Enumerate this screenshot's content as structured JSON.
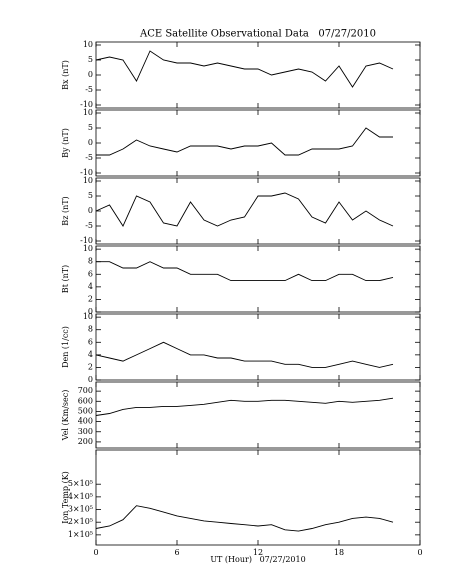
{
  "title": "ACE Satellite Observational Data   07/27/2010",
  "xlabel": "UT (Hour)   07/27/2010",
  "x": [
    0,
    1,
    2,
    3,
    4,
    5,
    6,
    7,
    8,
    9,
    10,
    11,
    12,
    13,
    14,
    15,
    16,
    17,
    18,
    19,
    20,
    21,
    22
  ],
  "xlim": [
    0,
    24
  ],
  "xticks": [
    0,
    6,
    12,
    18,
    {
      "value": 24,
      "label": "0"
    }
  ],
  "chart_data": [
    {
      "type": "line",
      "ylabel": "Bx (nT)",
      "ylim": [
        -11,
        11
      ],
      "yticks": [
        -10,
        -5,
        0,
        5,
        10
      ],
      "color": "#000000",
      "values": [
        5,
        6,
        5,
        -2,
        8,
        5,
        4,
        4,
        3,
        4,
        3,
        2,
        2,
        0,
        1,
        2,
        1,
        -2,
        3,
        -4,
        3,
        4,
        2
      ]
    },
    {
      "type": "line",
      "ylabel": "By (nT)",
      "ylim": [
        -11,
        11
      ],
      "yticks": [
        -10,
        -5,
        0,
        5,
        10
      ],
      "color": "#000000",
      "values": [
        -4,
        -4,
        -2,
        1,
        -1,
        -2,
        -3,
        -1,
        -1,
        -1,
        -2,
        -1,
        -1,
        0,
        -4,
        -4,
        -2,
        -2,
        -2,
        -1,
        5,
        2,
        2
      ]
    },
    {
      "type": "line",
      "ylabel": "Bz (nT)",
      "ylim": [
        -11,
        11
      ],
      "yticks": [
        -10,
        -5,
        0,
        5,
        10
      ],
      "color": "#000000",
      "values": [
        0,
        2,
        -5,
        5,
        3,
        -4,
        -5,
        3,
        -3,
        -5,
        -3,
        -2,
        5,
        5,
        6,
        4,
        -2,
        -4,
        3,
        -3,
        0,
        -3,
        -5
      ]
    },
    {
      "type": "line",
      "ylabel": "Bt (nT)",
      "ylim": [
        0,
        10.5
      ],
      "yticks": [
        0,
        2,
        4,
        6,
        8,
        10
      ],
      "color": "#000000",
      "values": [
        8,
        8,
        7,
        7,
        8,
        7,
        7,
        6,
        6,
        6,
        5,
        5,
        5,
        5,
        5,
        6,
        5,
        5,
        6,
        6,
        5,
        5,
        5.5
      ]
    },
    {
      "type": "line",
      "ylabel": "Den (1/cc)",
      "ylim": [
        0,
        10.5
      ],
      "yticks": [
        0,
        2,
        4,
        6,
        8,
        10
      ],
      "color": "#000000",
      "values": [
        4,
        3.5,
        3,
        4,
        5,
        6,
        5,
        4,
        4,
        3.5,
        3.5,
        3,
        3,
        3,
        2.5,
        2.5,
        2,
        2,
        2.5,
        3,
        2.5,
        2,
        2.5
      ]
    },
    {
      "type": "line",
      "ylabel": "Vel (Km/sec)",
      "ylim": [
        140,
        790
      ],
      "yticks": [
        200,
        300,
        400,
        500,
        600,
        700
      ],
      "color": "#000000",
      "values": [
        460,
        480,
        520,
        540,
        540,
        550,
        550,
        560,
        570,
        590,
        610,
        600,
        600,
        610,
        610,
        600,
        590,
        580,
        600,
        590,
        600,
        610,
        630
      ]
    },
    {
      "type": "line",
      "ylabel": "Ion Temp (K)",
      "ylim": [
        20000,
        770000
      ],
      "yticks": [
        {
          "value": 100000,
          "label": "1×10⁵"
        },
        {
          "value": 200000,
          "label": "2×10⁵"
        },
        {
          "value": 300000,
          "label": "3×10⁵"
        },
        {
          "value": 400000,
          "label": "4×10⁵"
        },
        {
          "value": 500000,
          "label": "5×10⁵"
        }
      ],
      "color": "#000000",
      "values": [
        150000,
        170000,
        220000,
        330000,
        310000,
        280000,
        250000,
        230000,
        210000,
        200000,
        190000,
        180000,
        170000,
        180000,
        140000,
        130000,
        150000,
        180000,
        200000,
        230000,
        240000,
        230000,
        200000
      ]
    }
  ]
}
